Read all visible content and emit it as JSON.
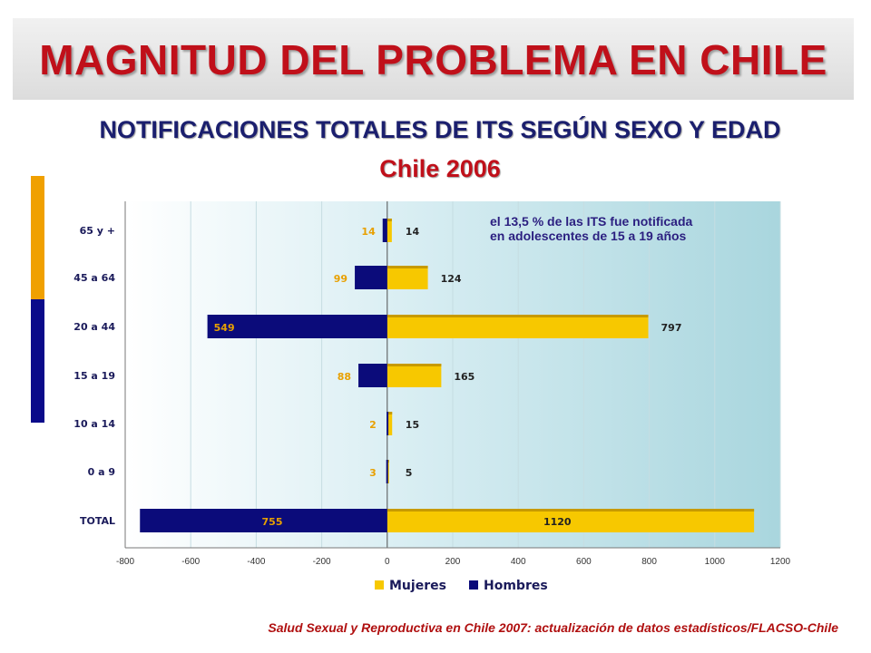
{
  "header": {
    "title": "MAGNITUD DEL PROBLEMA EN CHILE"
  },
  "subtitle": "NOTIFICACIONES TOTALES DE ITS SEGÚN SEXO Y EDAD",
  "subtitle2": "Chile 2006",
  "note": [
    "el 13,5 % de las ITS fue notificada",
    "en adolescentes de 15 a 19 años"
  ],
  "source": "Salud Sexual y Reproductiva en Chile 2007: actualización de datos estadísticos/FLACSO-Chile",
  "colors": {
    "title": "#c0101a",
    "subtitle": "#1b1f6e",
    "mujeres": "#f7c800",
    "hombres": "#0b0b7a"
  },
  "chart_data": {
    "type": "bar",
    "orientation": "horizontal",
    "categories": [
      "65 y +",
      "45 a 64",
      "20 a 44",
      "15 a 19",
      "10 a 14",
      "0 a 9",
      "TOTAL"
    ],
    "series": [
      {
        "name": "Mujeres",
        "values": [
          14,
          124,
          797,
          165,
          15,
          5,
          1120
        ],
        "labels": [
          "14",
          "124",
          "797",
          "165",
          "15",
          "5",
          "1120"
        ]
      },
      {
        "name": "Hombres",
        "values": [
          -14,
          -99,
          -549,
          -88,
          -2,
          -3,
          -755
        ],
        "labels": [
          "14",
          "99",
          "549",
          "88",
          "2",
          "3",
          "755"
        ]
      }
    ],
    "xlim": [
      -800,
      1200
    ],
    "xticks": [
      "-800",
      "-600",
      "-400",
      "-200",
      "0",
      "200",
      "400",
      "600",
      "800",
      "1000",
      "1200"
    ],
    "legend": {
      "position": "bottom",
      "items": [
        "Mujeres",
        "Hombres"
      ]
    },
    "grid": true
  }
}
